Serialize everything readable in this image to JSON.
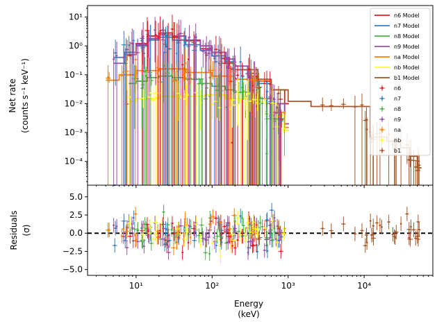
{
  "chart_data": [
    {
      "type": "line",
      "panel": "top",
      "ylabel_line1": "Net rate",
      "ylabel_line2": "(counts s⁻¹ keV⁻¹)",
      "xscale": "log",
      "yscale": "log",
      "xlim": [
        2.3,
        80000
      ],
      "ylim": [
        1.5e-05,
        25
      ],
      "yticks": [
        {
          "value": 10,
          "label": "10¹"
        },
        {
          "value": 1,
          "label": "10⁰"
        },
        {
          "value": 0.1,
          "label": "10⁻¹"
        },
        {
          "value": 0.01,
          "label": "10⁻²"
        },
        {
          "value": 0.001,
          "label": "10⁻³"
        },
        {
          "value": 0.0001,
          "label": "10⁻⁴"
        }
      ],
      "legend_position": "upper-right",
      "series": [
        {
          "name": "n6 Model",
          "color": "#e41a1c",
          "x": [
            8,
            10,
            14,
            20,
            30,
            45,
            70,
            100,
            150,
            200,
            300,
            400,
            600,
            900
          ],
          "y": [
            0.5,
            1.2,
            2.2,
            2.8,
            2.2,
            1.5,
            0.8,
            0.45,
            0.25,
            0.15,
            0.09,
            0.06,
            0.03,
            0.01
          ]
        },
        {
          "name": "n7 Model",
          "color": "#377eb8",
          "x": [
            5,
            7,
            10,
            14,
            20,
            30,
            45,
            70,
            100,
            150,
            200,
            300,
            400,
            600,
            900
          ],
          "y": [
            0.4,
            0.6,
            1.0,
            1.6,
            2.0,
            1.6,
            1.1,
            0.7,
            0.45,
            0.28,
            0.15,
            0.08,
            0.05,
            0.01,
            0.002
          ]
        },
        {
          "name": "n8 Model",
          "color": "#4daf4a",
          "x": [
            8,
            10,
            14,
            20,
            30,
            45,
            70,
            100,
            150,
            200,
            300,
            400,
            600,
            900
          ],
          "y": [
            0.05,
            0.06,
            0.08,
            0.09,
            0.08,
            0.07,
            0.05,
            0.04,
            0.03,
            0.025,
            0.02,
            0.015,
            0.003,
            0.0012
          ]
        },
        {
          "name": "n9 Model",
          "color": "#984ea3",
          "x": [
            5,
            7,
            10,
            14,
            20,
            30,
            45,
            70,
            100,
            150,
            200,
            300,
            400,
            600,
            900
          ],
          "y": [
            0.25,
            0.5,
            1.1,
            1.8,
            2.4,
            2.2,
            1.6,
            1.0,
            0.6,
            0.35,
            0.2,
            0.09,
            0.06,
            0.01,
            0.002
          ]
        },
        {
          "name": "na Model",
          "color": "#ff7f00",
          "x": [
            4,
            6,
            10,
            20,
            45,
            100,
            200,
            400,
            600,
            900
          ],
          "y": [
            0.065,
            0.1,
            0.14,
            0.16,
            0.12,
            0.09,
            0.07,
            0.06,
            0.005,
            0.0015
          ]
        },
        {
          "name": "nb Model",
          "color": "#ffff33",
          "x": [
            8,
            10,
            20,
            40,
            80,
            150,
            300,
            500,
            700,
            900
          ],
          "y": [
            0.012,
            0.015,
            0.018,
            0.018,
            0.02,
            0.015,
            0.012,
            0.01,
            0.004,
            0.0012
          ]
        },
        {
          "name": "b1 Model",
          "color": "#a65628",
          "x": [
            120,
            200,
            400,
            600,
            1000,
            2000,
            5000,
            10000,
            12000,
            20000,
            30000,
            40000,
            50000
          ],
          "y": [
            0.25,
            0.15,
            0.07,
            0.03,
            0.012,
            0.008,
            0.008,
            0.008,
            0.0007,
            0.0005,
            0.0003,
            0.00015,
            6e-05
          ]
        }
      ],
      "data_series": [
        {
          "name": "n6",
          "color": "#e41a1c"
        },
        {
          "name": "n7",
          "color": "#377eb8"
        },
        {
          "name": "n8",
          "color": "#4daf4a"
        },
        {
          "name": "n9",
          "color": "#984ea3"
        },
        {
          "name": "na",
          "color": "#ff7f00"
        },
        {
          "name": "nb",
          "color": "#ffff33"
        },
        {
          "name": "b1",
          "color": "#a65628"
        }
      ]
    },
    {
      "type": "scatter",
      "panel": "bottom",
      "xlabel_line1": "Energy",
      "xlabel_line2": "(keV)",
      "ylabel_line1": "Residuals",
      "ylabel_line2": "(σ)",
      "xscale": "log",
      "xlim": [
        2.3,
        80000
      ],
      "ylim": [
        -5.8,
        6.6
      ],
      "xticks": [
        {
          "value": 10,
          "label": "10¹"
        },
        {
          "value": 100,
          "label": "10²"
        },
        {
          "value": 1000,
          "label": "10³"
        },
        {
          "value": 10000,
          "label": "10⁴"
        }
      ],
      "yticks": [
        {
          "value": 5,
          "label": "5.0"
        },
        {
          "value": 2.5,
          "label": "2.5"
        },
        {
          "value": 0,
          "label": "0.0"
        },
        {
          "value": -2.5,
          "label": "−2.5"
        },
        {
          "value": -5,
          "label": "−5.0"
        }
      ],
      "reference_line": 0
    }
  ]
}
